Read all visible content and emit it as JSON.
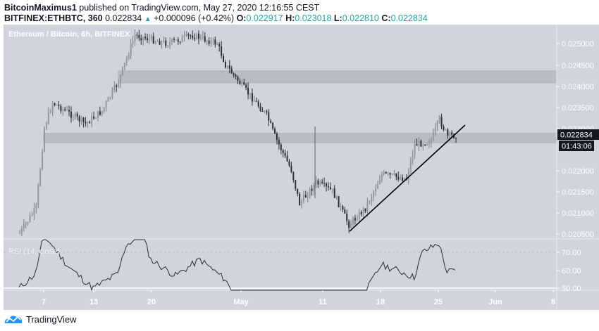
{
  "header": {
    "author": "BitcoinMaximus1",
    "published_text": "published on TradingView.com, May 27, 2020 12:16:55 CEST",
    "symbol": "BITFINEX:ETHBTC, 360",
    "last": "0.022834",
    "change": "+0.000096 (+0.42%)",
    "open_label": "O:",
    "open": "0.022917",
    "high_label": "H:",
    "high": "0.023018",
    "low_label": "L:",
    "low": "0.022810",
    "close_label": "C:",
    "close": "0.022834",
    "up_arrow": "▲"
  },
  "chart": {
    "title": "Ethereum / Bitcoin, 6h, BITFINEX",
    "price_labels": [
      "0.025000",
      "0.024500",
      "0.024000",
      "0.023500",
      "0.023000",
      "0.022000",
      "0.021500",
      "0.021000",
      "0.020500"
    ],
    "current_price_tag": "0.022834",
    "countdown_tag": "01:43:06",
    "rsi_title": "RSI (14, close)",
    "rsi_labels": [
      "70.00",
      "60.00",
      "50.00"
    ],
    "x_labels": [
      "7",
      "13",
      "20",
      "May",
      "11",
      "18",
      "25",
      "Jun",
      "8"
    ]
  },
  "footer": {
    "brand": "TradingView"
  },
  "colors": {
    "background": "#d1d4dc",
    "zone": "#babcc4",
    "axis_text": "#ffffff",
    "tag_bg": "#131722",
    "header_green": "#26a69a",
    "logo_blue": "#2196f3"
  },
  "chart_data": {
    "type": "candlestick",
    "title": "Ethereum / Bitcoin, 6h, BITFINEX",
    "symbol": "BITFINEX:ETHBTC",
    "interval": "6h",
    "ylim": [
      0.0203,
      0.0255
    ],
    "y_ticks": [
      0.0205,
      0.021,
      0.0215,
      0.022,
      0.023,
      0.0235,
      0.024,
      0.0245,
      0.025
    ],
    "x_ticks": [
      "7",
      "13",
      "20",
      "May",
      "11",
      "18",
      "25",
      "Jun",
      "8"
    ],
    "last_price": 0.022834,
    "ohlc_last": {
      "open": 0.022917,
      "high": 0.023018,
      "low": 0.02281,
      "close": 0.022834
    },
    "approx_close_path": [
      {
        "date": "Apr 4",
        "price": 0.0205
      },
      {
        "date": "Apr 6",
        "price": 0.0211
      },
      {
        "date": "Apr 7",
        "price": 0.023
      },
      {
        "date": "Apr 8",
        "price": 0.0236
      },
      {
        "date": "Apr 12",
        "price": 0.0231
      },
      {
        "date": "Apr 14",
        "price": 0.0234
      },
      {
        "date": "Apr 16",
        "price": 0.0241
      },
      {
        "date": "Apr 18",
        "price": 0.0252
      },
      {
        "date": "Apr 22",
        "price": 0.025
      },
      {
        "date": "Apr 25",
        "price": 0.0252
      },
      {
        "date": "Apr 28",
        "price": 0.025
      },
      {
        "date": "Apr 29",
        "price": 0.0245
      },
      {
        "date": "May 1",
        "price": 0.024
      },
      {
        "date": "May 4",
        "price": 0.0233
      },
      {
        "date": "May 5",
        "price": 0.0228
      },
      {
        "date": "May 7",
        "price": 0.022
      },
      {
        "date": "May 8",
        "price": 0.0212
      },
      {
        "date": "May 10",
        "price": 0.0217
      },
      {
        "date": "May 12",
        "price": 0.0215
      },
      {
        "date": "May 14",
        "price": 0.0207
      },
      {
        "date": "May 16",
        "price": 0.0211
      },
      {
        "date": "May 18",
        "price": 0.0219
      },
      {
        "date": "May 21",
        "price": 0.0218
      },
      {
        "date": "May 22",
        "price": 0.0226
      },
      {
        "date": "May 24",
        "price": 0.0227
      },
      {
        "date": "May 25",
        "price": 0.0232
      },
      {
        "date": "May 26",
        "price": 0.0228
      },
      {
        "date": "May 27",
        "price": 0.022834
      }
    ],
    "zones": [
      {
        "name": "resistance",
        "from": 0.02407,
        "to": 0.02435
      },
      {
        "name": "support",
        "from": 0.02265,
        "to": 0.02287
      }
    ],
    "trendline": {
      "from": {
        "date": "May 14",
        "price": 0.02055
      },
      "to": {
        "date": "May 27",
        "price": 0.02295
      }
    },
    "rsi": {
      "title": "RSI (14, close)",
      "ylim_visible": [
        48,
        78
      ],
      "levels": [
        70,
        50
      ],
      "ticks": [
        70,
        60,
        50
      ],
      "approx_values": [
        {
          "date": "Apr 4",
          "value": 50
        },
        {
          "date": "Apr 6",
          "value": 58
        },
        {
          "date": "Apr 7",
          "value": 80
        },
        {
          "date": "Apr 10",
          "value": 62
        },
        {
          "date": "Apr 13",
          "value": 50
        },
        {
          "date": "Apr 16",
          "value": 58
        },
        {
          "date": "Apr 17",
          "value": 74
        },
        {
          "date": "Apr 19",
          "value": 80
        },
        {
          "date": "Apr 20",
          "value": 66
        },
        {
          "date": "Apr 23",
          "value": 57
        },
        {
          "date": "Apr 26",
          "value": 66
        },
        {
          "date": "Apr 29",
          "value": 55
        },
        {
          "date": "May 1",
          "value": 40
        },
        {
          "date": "May 16",
          "value": 47
        },
        {
          "date": "May 18",
          "value": 63
        },
        {
          "date": "May 20",
          "value": 60
        },
        {
          "date": "May 22",
          "value": 56
        },
        {
          "date": "May 23",
          "value": 70
        },
        {
          "date": "May 25",
          "value": 75
        },
        {
          "date": "May 26",
          "value": 59
        },
        {
          "date": "May 27",
          "value": 60
        }
      ]
    }
  }
}
